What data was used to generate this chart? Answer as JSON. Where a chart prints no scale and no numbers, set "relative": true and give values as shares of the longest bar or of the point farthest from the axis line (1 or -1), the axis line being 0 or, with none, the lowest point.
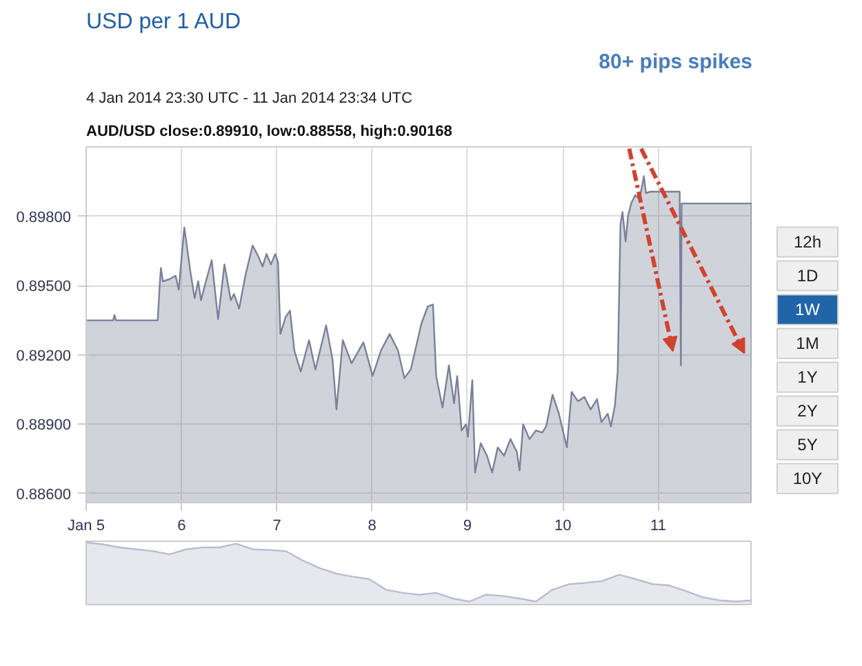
{
  "chart_data": [
    {
      "type": "area",
      "title": "USD per 1 AUD",
      "subtitle": "4 Jan 2014 23:30 UTC - 11 Jan 2014 23:34 UTC",
      "annotations": [
        "AUD/USD close:0.89910, low:0.88558, high:0.90168",
        "80+ pips spikes",
        "12h",
        "1D",
        "1W",
        "1M",
        "1Y",
        "2Y",
        "5Y",
        "10Y"
      ],
      "x": [
        "2014-01-05T00:00",
        "2014-01-05T06:48",
        "2014-01-05T07:06",
        "2014-01-05T07:30",
        "2014-01-05T18:00",
        "2014-01-05T18:30",
        "2014-01-05T18:48",
        "2014-01-05T19:18",
        "2014-01-05T20:54",
        "2014-01-05T22:30",
        "2014-01-05T23:18",
        "2014-01-06T00:42",
        "2014-01-06T02:12",
        "2014-01-06T03:18",
        "2014-01-06T04:12",
        "2014-01-06T04:54",
        "2014-01-06T06:00",
        "2014-01-06T07:36",
        "2014-01-06T09:12",
        "2014-01-06T10:48",
        "2014-01-06T12:24",
        "2014-01-06T13:12",
        "2014-01-06T14:30",
        "2014-01-06T16:06",
        "2014-01-06T17:54",
        "2014-01-06T19:18",
        "2014-01-06T20:24",
        "2014-01-06T21:24",
        "2014-01-06T22:30",
        "2014-01-06T23:36",
        "2014-01-07T00:18",
        "2014-01-07T00:36",
        "2014-01-07T00:54",
        "2014-01-07T02:12",
        "2014-01-07T03:18",
        "2014-01-07T04:24",
        "2014-01-07T06:00",
        "2014-01-07T08:06",
        "2014-01-07T09:42",
        "2014-01-07T12:24",
        "2014-01-07T14:00",
        "2014-01-07T15:00",
        "2014-01-07T16:36",
        "2014-01-07T18:48",
        "2014-01-07T21:48",
        "2014-01-08T00:06",
        "2014-01-08T02:12",
        "2014-01-08T04:24",
        "2014-01-08T06:30",
        "2014-01-08T08:06",
        "2014-01-08T09:42",
        "2014-01-08T12:24",
        "2014-01-08T14:00",
        "2014-01-08T15:18",
        "2014-01-08T16:06",
        "2014-01-08T17:42",
        "2014-01-08T19:18",
        "2014-01-08T20:36",
        "2014-01-08T21:24",
        "2014-01-08T22:30",
        "2014-01-08T23:36",
        "2014-01-09T00:06",
        "2014-01-09T01:12",
        "2014-01-09T01:54",
        "2014-01-09T03:18",
        "2014-01-09T04:54",
        "2014-01-09T06:12",
        "2014-01-09T07:36",
        "2014-01-09T09:12",
        "2014-01-09T10:48",
        "2014-01-09T12:24",
        "2014-01-09T13:06",
        "2014-01-09T14:00",
        "2014-01-09T15:36",
        "2014-01-09T17:12",
        "2014-01-09T18:48",
        "2014-01-09T19:48",
        "2014-01-09T21:24",
        "2014-01-09T23:00",
        "2014-01-10T01:00",
        "2014-01-10T02:12",
        "2014-01-10T03:48",
        "2014-01-10T05:24",
        "2014-01-10T07:00",
        "2014-01-10T08:36",
        "2014-01-10T09:42",
        "2014-01-10T11:18",
        "2014-01-10T12:06",
        "2014-01-10T13:06",
        "2014-01-10T13:48",
        "2014-01-10T14:12",
        "2014-01-10T14:30",
        "2014-01-10T15:00",
        "2014-01-10T15:48",
        "2014-01-10T16:24",
        "2014-01-10T17:12",
        "2014-01-10T18:12",
        "2014-01-10T19:18",
        "2014-01-10T20:24",
        "2014-01-10T20:54",
        "2014-01-10T22:00",
        "2014-01-11T05:24",
        "2014-01-11T05:42",
        "2014-01-11T05:54",
        "2014-01-11T23:36",
        "2014-01-11T23:42"
      ],
      "series": [
        {
          "color": "#7a8099",
          "values": [
            0.89349,
            0.89349,
            0.89372,
            0.89349,
            0.89349,
            0.895,
            0.89576,
            0.89518,
            0.89527,
            0.89542,
            0.89482,
            0.89751,
            0.89563,
            0.89445,
            0.89518,
            0.89436,
            0.89509,
            0.89609,
            0.89354,
            0.89591,
            0.89436,
            0.89463,
            0.894,
            0.89545,
            0.89673,
            0.89627,
            0.89582,
            0.89636,
            0.89591,
            0.89636,
            0.896,
            0.89436,
            0.8929,
            0.89363,
            0.89391,
            0.89218,
            0.89127,
            0.89263,
            0.89136,
            0.89327,
            0.89181,
            0.88963,
            0.89263,
            0.89163,
            0.89254,
            0.89108,
            0.89218,
            0.8929,
            0.89218,
            0.89099,
            0.89136,
            0.89336,
            0.89409,
            0.89418,
            0.89108,
            0.88972,
            0.89154,
            0.8899,
            0.89108,
            0.88872,
            0.88899,
            0.88845,
            0.8909,
            0.8869,
            0.88817,
            0.88763,
            0.8869,
            0.88799,
            0.88763,
            0.88835,
            0.88781,
            0.88699,
            0.88899,
            0.88835,
            0.88872,
            0.88863,
            0.8889,
            0.89027,
            0.88945,
            0.88799,
            0.89039,
            0.88999,
            0.89017,
            0.88963,
            0.89008,
            0.88908,
            0.88945,
            0.8889,
            0.88981,
            0.89127,
            0.89491,
            0.89764,
            0.89818,
            0.89691,
            0.898,
            0.89855,
            0.89891,
            0.89873,
            0.89973,
            0.899,
            0.89906,
            0.89906,
            0.89154,
            0.89855,
            0.89855,
            0.89145
          ]
        }
      ],
      "xlim": [
        "2014-01-05T00:00",
        "2014-01-11T23:42"
      ],
      "xticks": [
        {
          "value": "2014-01-05",
          "label": "Jan 5"
        },
        {
          "value": "2014-01-06",
          "label": "6"
        },
        {
          "value": "2014-01-07",
          "label": "7"
        },
        {
          "value": "2014-01-08",
          "label": "8"
        },
        {
          "value": "2014-01-09",
          "label": "9"
        },
        {
          "value": "2014-01-10",
          "label": "10"
        },
        {
          "value": "2014-01-11",
          "label": "11"
        }
      ],
      "ylim": [
        0.8856,
        0.901
      ],
      "yticks": [
        {
          "value": 0.886,
          "label": "0.88600"
        },
        {
          "value": 0.889,
          "label": "0.88900"
        },
        {
          "value": 0.892,
          "label": "0.89200"
        },
        {
          "value": 0.895,
          "label": "0.89500"
        },
        {
          "value": 0.898,
          "label": "0.89800"
        }
      ],
      "grid": true
    },
    {
      "type": "area",
      "relative": true,
      "color": "#b9bccf",
      "categories": [
        null,
        null,
        null,
        null,
        null,
        null,
        null,
        null,
        null,
        null,
        null,
        null,
        null,
        null,
        null,
        null,
        null,
        null,
        null,
        null,
        null,
        null,
        null,
        null,
        null,
        null,
        null,
        null,
        null,
        null,
        null,
        null,
        null,
        null,
        null,
        null,
        null,
        null,
        null,
        null,
        null
      ],
      "values": [
        1.0,
        0.97,
        0.92,
        0.89,
        0.86,
        0.81,
        0.89,
        0.92,
        0.92,
        0.98,
        0.89,
        0.88,
        0.86,
        0.71,
        0.59,
        0.5,
        0.45,
        0.41,
        0.24,
        0.19,
        0.16,
        0.19,
        0.1,
        0.05,
        0.16,
        0.14,
        0.1,
        0.05,
        0.24,
        0.33,
        0.35,
        0.38,
        0.48,
        0.41,
        0.33,
        0.31,
        0.22,
        0.12,
        0.07,
        0.05,
        0.07
      ]
    }
  ]
}
